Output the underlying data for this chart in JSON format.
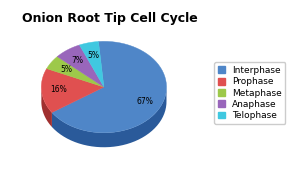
{
  "title": "Onion Root Tip Cell Cycle",
  "labels": [
    "Interphase",
    "Prophase",
    "Metaphase",
    "Anaphase",
    "Telophase"
  ],
  "values": [
    67,
    16,
    5,
    7,
    5
  ],
  "colors": [
    "#4f86c8",
    "#e05050",
    "#9dc94a",
    "#9966bb",
    "#40c8e0"
  ],
  "dark_colors": [
    "#2a5a9a",
    "#a03030",
    "#6a9a20",
    "#663388",
    "#1898b0"
  ],
  "title_fontsize": 9,
  "legend_fontsize": 6.5,
  "background_color": "#ffffff",
  "startangle": 95,
  "depth": 0.12,
  "pct_distance": 0.72
}
